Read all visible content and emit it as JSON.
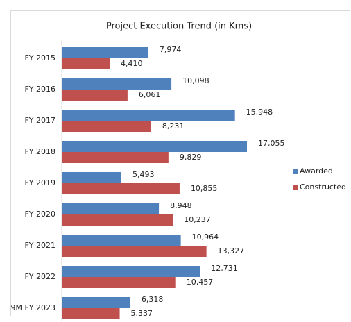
{
  "chart_data": {
    "type": "hbar",
    "title": "Project Execution Trend (in Kms)",
    "categories": [
      "FY 2015",
      "FY 2016",
      "FY 2017",
      "FY 2018",
      "FY 2019",
      "FY 2020",
      "FY 2021",
      "FY 2022",
      "9M FY 2023"
    ],
    "series": [
      {
        "name": "Awarded",
        "color": "#4f81bd",
        "values": [
          7974,
          10098,
          15948,
          17055,
          5493,
          8948,
          10964,
          12731,
          6318
        ],
        "value_labels": [
          "7,974",
          "10,098",
          "15,948",
          "17,055",
          "5,493",
          "8,948",
          "10,964",
          "12,731",
          "6,318"
        ]
      },
      {
        "name": "Constructed",
        "color": "#c0504d",
        "values": [
          4410,
          6061,
          8231,
          9829,
          10855,
          10237,
          13327,
          10457,
          5337
        ],
        "value_labels": [
          "4,410",
          "6,061",
          "8,231",
          "9,829",
          "10,855",
          "10,237",
          "13,327",
          "10,457",
          "5,337"
        ]
      }
    ],
    "legend": "right"
  }
}
